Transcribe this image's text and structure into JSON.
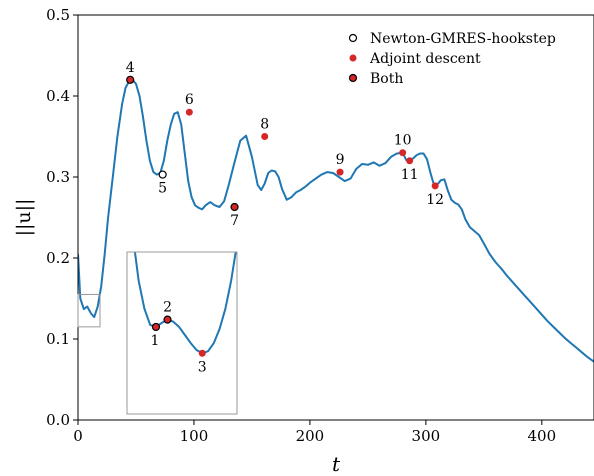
{
  "chart_data": {
    "type": "line",
    "xlabel": "t",
    "ylabel": "||u||",
    "xlim": [
      0,
      445
    ],
    "ylim": [
      0,
      0.5
    ],
    "xticks": [
      0,
      100,
      200,
      300,
      400
    ],
    "yticks": [
      0.0,
      0.1,
      0.2,
      0.3,
      0.4,
      0.5
    ],
    "grid": false,
    "legend_position": "top-right",
    "colors": {
      "line": "#1f77b4",
      "adjoint": "#d62728",
      "marker_edge": "#000000",
      "inset_frame": "#999999"
    },
    "legend": [
      {
        "label": "Newton-GMRES-hookstep",
        "style": "newton"
      },
      {
        "label": "Adjoint descent",
        "style": "adjoint"
      },
      {
        "label": "Both",
        "style": "both"
      }
    ],
    "series": [
      {
        "x": [
          0,
          2,
          5,
          8,
          11,
          14,
          17,
          20,
          23,
          26,
          30,
          34,
          38,
          41,
          44,
          47,
          50,
          53,
          56,
          59,
          62,
          65,
          68,
          71,
          74,
          77,
          80,
          83,
          86,
          89,
          92,
          95,
          98,
          101,
          104,
          107,
          110,
          114,
          118,
          122,
          126,
          130,
          135,
          140,
          145,
          150,
          155,
          158,
          161,
          164,
          167,
          170,
          173,
          176,
          180,
          184,
          188,
          192,
          196,
          200,
          205,
          210,
          215,
          220,
          225,
          230,
          235,
          240,
          245,
          250,
          255,
          260,
          265,
          270,
          275,
          280,
          283,
          286,
          289,
          292,
          295,
          298,
          301,
          304,
          307,
          310,
          313,
          316,
          319,
          322,
          325,
          328,
          331,
          334,
          338,
          342,
          346,
          350,
          355,
          360,
          365,
          370,
          375,
          380,
          385,
          390,
          395,
          400,
          405,
          410,
          415,
          420,
          425,
          430,
          435,
          440,
          445
        ],
        "y": [
          0.205,
          0.15,
          0.137,
          0.14,
          0.132,
          0.127,
          0.14,
          0.165,
          0.205,
          0.25,
          0.3,
          0.35,
          0.39,
          0.41,
          0.418,
          0.42,
          0.415,
          0.4,
          0.375,
          0.345,
          0.32,
          0.306,
          0.303,
          0.305,
          0.32,
          0.345,
          0.365,
          0.378,
          0.38,
          0.365,
          0.33,
          0.295,
          0.275,
          0.265,
          0.262,
          0.26,
          0.265,
          0.269,
          0.265,
          0.263,
          0.27,
          0.29,
          0.318,
          0.345,
          0.351,
          0.325,
          0.29,
          0.284,
          0.292,
          0.305,
          0.308,
          0.307,
          0.3,
          0.285,
          0.272,
          0.275,
          0.281,
          0.284,
          0.288,
          0.293,
          0.298,
          0.303,
          0.306,
          0.305,
          0.3,
          0.295,
          0.298,
          0.31,
          0.316,
          0.315,
          0.318,
          0.314,
          0.317,
          0.325,
          0.329,
          0.33,
          0.321,
          0.32,
          0.323,
          0.327,
          0.329,
          0.329,
          0.322,
          0.305,
          0.29,
          0.291,
          0.296,
          0.297,
          0.283,
          0.272,
          0.268,
          0.266,
          0.26,
          0.248,
          0.238,
          0.233,
          0.228,
          0.218,
          0.205,
          0.195,
          0.187,
          0.178,
          0.17,
          0.162,
          0.154,
          0.146,
          0.138,
          0.13,
          0.122,
          0.115,
          0.108,
          0.101,
          0.095,
          0.089,
          0.083,
          0.077,
          0.072
        ]
      }
    ],
    "points": [
      {
        "label": "4",
        "x": 45,
        "y": 0.42,
        "type": "both",
        "label_pos": "above"
      },
      {
        "label": "5",
        "x": 73,
        "y": 0.303,
        "type": "newton",
        "label_pos": "below"
      },
      {
        "label": "6",
        "x": 96,
        "y": 0.38,
        "type": "adjoint",
        "label_pos": "above"
      },
      {
        "label": "7",
        "x": 135,
        "y": 0.263,
        "type": "both",
        "label_pos": "below"
      },
      {
        "label": "8",
        "x": 161,
        "y": 0.35,
        "type": "adjoint",
        "label_pos": "above"
      },
      {
        "label": "9",
        "x": 226,
        "y": 0.306,
        "type": "adjoint",
        "label_pos": "above"
      },
      {
        "label": "10",
        "x": 280,
        "y": 0.33,
        "type": "adjoint",
        "label_pos": "above"
      },
      {
        "label": "11",
        "x": 286,
        "y": 0.32,
        "type": "adjoint",
        "label_pos": "below"
      },
      {
        "label": "12",
        "x": 308,
        "y": 0.289,
        "type": "adjoint",
        "label_pos": "below"
      }
    ],
    "inset": {
      "source_xlim": [
        0,
        19
      ],
      "source_ylim": [
        0.115,
        0.155
      ],
      "series": {
        "x": [
          1.2,
          2,
          3,
          4,
          5,
          6,
          7,
          8,
          9,
          10,
          11,
          12,
          13,
          14,
          15,
          16,
          17,
          18,
          19
        ],
        "y": [
          0.157,
          0.148,
          0.141,
          0.137,
          0.1365,
          0.1375,
          0.1383,
          0.1378,
          0.1365,
          0.1345,
          0.1325,
          0.1308,
          0.13,
          0.1305,
          0.1325,
          0.136,
          0.141,
          0.148,
          0.157
        ]
      },
      "points": [
        {
          "label": "1",
          "x": 5,
          "y": 0.1365,
          "type": "both",
          "label_pos": "below"
        },
        {
          "label": "2",
          "x": 7,
          "y": 0.1383,
          "type": "both",
          "label_pos": "above"
        },
        {
          "label": "3",
          "x": 13,
          "y": 0.13,
          "type": "adjoint",
          "label_pos": "below"
        }
      ]
    }
  }
}
